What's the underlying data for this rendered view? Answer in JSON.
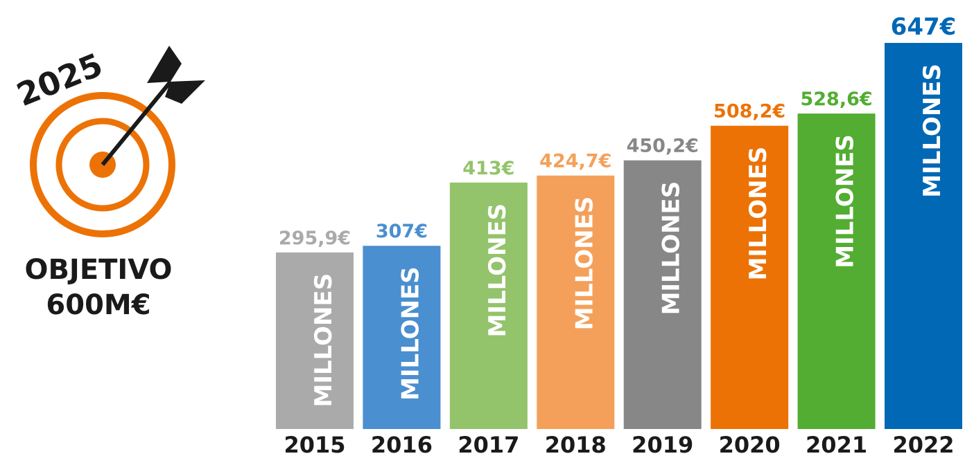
{
  "chart_data": {
    "type": "bar",
    "categories": [
      "2015",
      "2016",
      "2017",
      "2018",
      "2019",
      "2020",
      "2021",
      "2022"
    ],
    "values": [
      295.9,
      307,
      413,
      424.7,
      450.2,
      508.2,
      528.6,
      647
    ],
    "value_labels": [
      "295,9€",
      "307€",
      "413€",
      "424,7€",
      "450,2€",
      "508,2€",
      "528,6€",
      "647€"
    ],
    "colors": [
      "#aaaaaa",
      "#4a8fcf",
      "#93c36b",
      "#f4a05a",
      "#878787",
      "#ec7206",
      "#52ad32",
      "#0068b4"
    ],
    "unit_label": "MILLONES"
  },
  "goal": {
    "year": "2025",
    "label": "OBJETIVO",
    "amount": "600M€"
  }
}
